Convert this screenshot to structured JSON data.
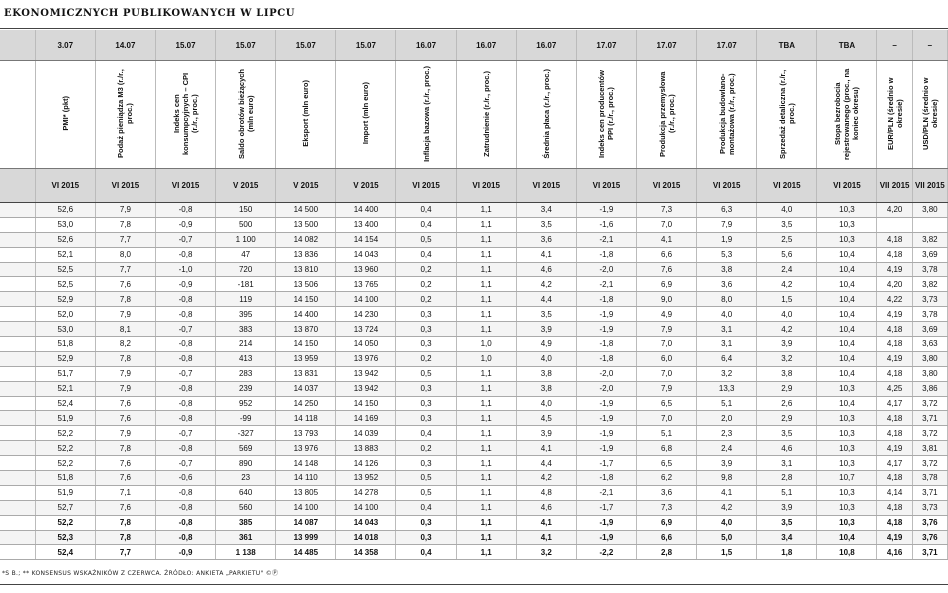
{
  "title": "EKONOMICZNYCH PUBLIKOWANYCH W LIPCU",
  "dates": [
    "",
    "3.07",
    "14.07",
    "15.07",
    "15.07",
    "15.07",
    "15.07",
    "16.07",
    "16.07",
    "16.07",
    "17.07",
    "17.07",
    "17.07",
    "TBA",
    "TBA",
    "–",
    "–"
  ],
  "labels": [
    "",
    "PMI* (pkt)",
    "Podaż pieniądza M3 (r./r., proc.)",
    "Indeks cen konsumpcyjnych – CPI (r./r., proc.)",
    "Saldo obrotów bieżących (mln euro)",
    "Eksport (mln euro)",
    "Import (mln euro)",
    "Inflacja bazowa (r./r., proc.)",
    "Zatrudnienie (r./r., proc.)",
    "Średnia płaca (r./r., proc.)",
    "Indeks cen producentów PPI (r./r., proc.)",
    "Produkcja przemysłowa (r./r., proc.)",
    "Produkcja budowlano-montażowa (r./r., proc.)",
    "Sprzedaż detaliczna (r./r., proc.)",
    "Stopa bezrobocia rejestrowanego (proc., na koniec okresu)",
    "EUR/PLN (średnio w okresie)",
    "USD/PLN (średnio w okresie)"
  ],
  "periods": [
    "",
    "VI 2015",
    "VI 2015",
    "VI 2015",
    "V 2015",
    "V 2015",
    "V 2015",
    "VI 2015",
    "VI 2015",
    "VI 2015",
    "VI 2015",
    "VI 2015",
    "VI 2015",
    "VI 2015",
    "VI 2015",
    "VII 2015",
    "VII 2015"
  ],
  "rows": [
    [
      "",
      "52,6",
      "7,9",
      "-0,8",
      "150",
      "14 500",
      "14 400",
      "0,4",
      "1,1",
      "3,4",
      "-1,9",
      "7,3",
      "6,3",
      "4,0",
      "10,3",
      "4,20",
      "3,80"
    ],
    [
      "",
      "53,0",
      "7,8",
      "-0,9",
      "500",
      "13 500",
      "13 400",
      "0,4",
      "1,1",
      "3,5",
      "-1,6",
      "7,0",
      "7,9",
      "3,5",
      "10,3",
      "",
      ""
    ],
    [
      "",
      "52,6",
      "7,7",
      "-0,7",
      "1 100",
      "14 082",
      "14 154",
      "0,5",
      "1,1",
      "3,6",
      "-2,1",
      "4,1",
      "1,9",
      "2,5",
      "10,3",
      "4,18",
      "3,82"
    ],
    [
      "",
      "52,1",
      "8,0",
      "-0,8",
      "47",
      "13 836",
      "14 043",
      "0,4",
      "1,1",
      "4,1",
      "-1,8",
      "6,6",
      "5,3",
      "5,6",
      "10,4",
      "4,18",
      "3,69"
    ],
    [
      "",
      "52,5",
      "7,7",
      "-1,0",
      "720",
      "13 810",
      "13 960",
      "0,2",
      "1,1",
      "4,6",
      "-2,0",
      "7,6",
      "3,8",
      "2,4",
      "10,4",
      "4,19",
      "3,78"
    ],
    [
      "",
      "52,5",
      "7,6",
      "-0,9",
      "-181",
      "13 506",
      "13 765",
      "0,2",
      "1,1",
      "4,2",
      "-2,1",
      "6,9",
      "3,6",
      "4,2",
      "10,4",
      "4,20",
      "3,82"
    ],
    [
      "",
      "52,9",
      "7,8",
      "-0,8",
      "119",
      "14 150",
      "14 100",
      "0,2",
      "1,1",
      "4,4",
      "-1,8",
      "9,0",
      "8,0",
      "1,5",
      "10,4",
      "4,22",
      "3,73"
    ],
    [
      "",
      "52,0",
      "7,9",
      "-0,8",
      "395",
      "14 400",
      "14 230",
      "0,3",
      "1,1",
      "3,5",
      "-1,9",
      "4,9",
      "4,0",
      "4,0",
      "10,4",
      "4,19",
      "3,78"
    ],
    [
      "",
      "53,0",
      "8,1",
      "-0,7",
      "383",
      "13 870",
      "13 724",
      "0,3",
      "1,1",
      "3,9",
      "-1,9",
      "7,9",
      "3,1",
      "4,2",
      "10,4",
      "4,18",
      "3,69"
    ],
    [
      "",
      "51,8",
      "8,2",
      "-0,8",
      "214",
      "14 150",
      "14 050",
      "0,3",
      "1,0",
      "4,9",
      "-1,8",
      "7,0",
      "3,1",
      "3,9",
      "10,4",
      "4,18",
      "3,63"
    ],
    [
      "",
      "52,9",
      "7,8",
      "-0,8",
      "413",
      "13 959",
      "13 976",
      "0,2",
      "1,0",
      "4,0",
      "-1,8",
      "6,0",
      "6,4",
      "3,2",
      "10,4",
      "4,19",
      "3,80"
    ],
    [
      "",
      "51,7",
      "7,9",
      "-0,7",
      "283",
      "13 831",
      "13 942",
      "0,5",
      "1,1",
      "3,8",
      "-2,0",
      "7,0",
      "3,2",
      "3,8",
      "10,4",
      "4,18",
      "3,80"
    ],
    [
      "",
      "52,1",
      "7,9",
      "-0,8",
      "239",
      "14 037",
      "13 942",
      "0,3",
      "1,1",
      "3,8",
      "-2,0",
      "7,9",
      "13,3",
      "2,9",
      "10,3",
      "4,25",
      "3,86"
    ],
    [
      "",
      "52,4",
      "7,6",
      "-0,8",
      "952",
      "14 250",
      "14 150",
      "0,3",
      "1,1",
      "4,0",
      "-1,9",
      "6,5",
      "5,1",
      "2,6",
      "10,4",
      "4,17",
      "3,72"
    ],
    [
      "",
      "51,9",
      "7,6",
      "-0,8",
      "-99",
      "14 118",
      "14 169",
      "0,3",
      "1,1",
      "4,5",
      "-1,9",
      "7,0",
      "2,0",
      "2,9",
      "10,3",
      "4,18",
      "3,71"
    ],
    [
      "",
      "52,2",
      "7,9",
      "-0,7",
      "-327",
      "13 793",
      "14 039",
      "0,4",
      "1,1",
      "3,9",
      "-1,9",
      "5,1",
      "2,3",
      "3,5",
      "10,3",
      "4,18",
      "3,72"
    ],
    [
      "",
      "52,2",
      "7,8",
      "-0,8",
      "569",
      "13 976",
      "13 883",
      "0,2",
      "1,1",
      "4,1",
      "-1,9",
      "6,8",
      "2,4",
      "4,6",
      "10,3",
      "4,19",
      "3,81"
    ],
    [
      "",
      "52,2",
      "7,6",
      "-0,7",
      "890",
      "14 148",
      "14 126",
      "0,3",
      "1,1",
      "4,4",
      "-1,7",
      "6,5",
      "3,9",
      "3,1",
      "10,3",
      "4,17",
      "3,72"
    ],
    [
      "",
      "51,8",
      "7,6",
      "-0,6",
      "23",
      "14 110",
      "13 952",
      "0,5",
      "1,1",
      "4,2",
      "-1,8",
      "6,2",
      "9,8",
      "2,8",
      "10,7",
      "4,18",
      "3,78"
    ],
    [
      "",
      "51,9",
      "7,1",
      "-0,8",
      "640",
      "13 805",
      "14 278",
      "0,5",
      "1,1",
      "4,8",
      "-2,1",
      "3,6",
      "4,1",
      "5,1",
      "10,3",
      "4,14",
      "3,71"
    ],
    [
      "",
      "52,7",
      "7,6",
      "-0,8",
      "560",
      "14 100",
      "14 100",
      "0,4",
      "1,1",
      "4,6",
      "-1,7",
      "7,3",
      "4,2",
      "3,9",
      "10,3",
      "4,18",
      "3,73"
    ]
  ],
  "summary_rows": [
    [
      "",
      "52,2",
      "7,8",
      "-0,8",
      "385",
      "14 087",
      "14 043",
      "0,3",
      "1,1",
      "4,1",
      "-1,9",
      "6,9",
      "4,0",
      "3,5",
      "10,3",
      "4,18",
      "3,76"
    ],
    [
      "",
      "52,3",
      "7,8",
      "-0,8",
      "361",
      "13 999",
      "14 018",
      "0,3",
      "1,1",
      "4,1",
      "-1,9",
      "6,6",
      "5,0",
      "3,4",
      "10,4",
      "4,19",
      "3,76"
    ],
    [
      "",
      "52,4",
      "7,7",
      "-0,9",
      "1 138",
      "14 485",
      "14 358",
      "0,4",
      "1,1",
      "3,2",
      "-2,2",
      "2,8",
      "1,5",
      "1,8",
      "10,8",
      "4,16",
      "3,71"
    ]
  ],
  "footer": "*S B.; ** KONSENSUS WSKAŹNIKÓW Z CZERWCA. ŹRÓDŁO: ANKIETA „PARKIETU\" ©Ⓟ"
}
